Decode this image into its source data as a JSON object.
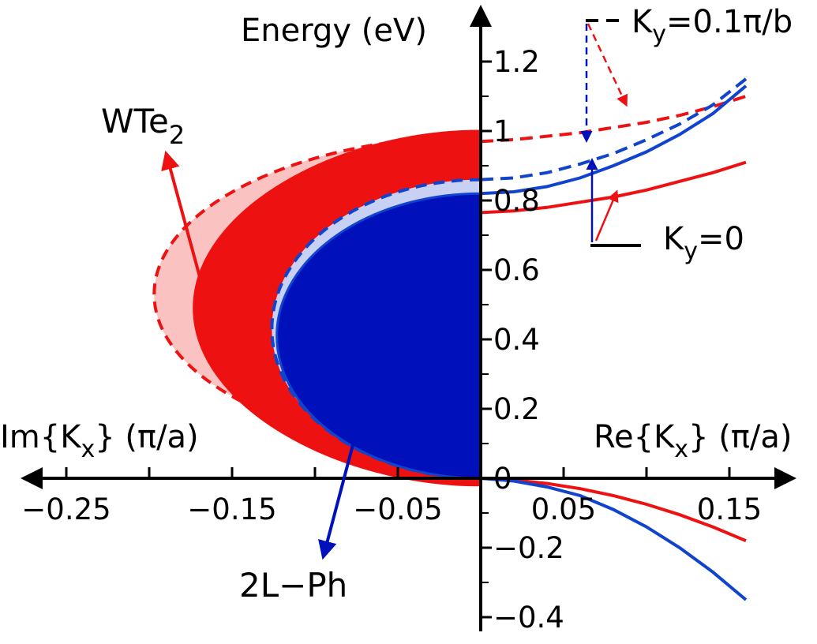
{
  "chart_data": {
    "type": "line",
    "x_axis": {
      "left_label": "Im{Kx} (π/a)",
      "right_label": "Re{Kx} (π/a)",
      "ticks_left": [
        -0.25,
        -0.15,
        -0.05
      ],
      "ticks_right": [
        0.05,
        0.15
      ],
      "tick_labels_left": [
        "−0.25",
        "−0.15",
        "−0.05"
      ],
      "tick_labels_right": [
        "0.05",
        "0.15"
      ],
      "xlim": [
        -0.27,
        0.18
      ]
    },
    "y_axis": {
      "label": "Energy (eV)",
      "ticks": [
        -0.4,
        -0.2,
        0,
        0.2,
        0.4,
        0.6,
        0.8,
        1.0,
        1.2
      ],
      "tick_labels": [
        "−0.4",
        "−0.2",
        "0",
        "0.2",
        "0.4",
        "0.6",
        "0.8",
        "1",
        "1.2"
      ],
      "ylim": [
        -0.45,
        1.3
      ]
    },
    "colors": {
      "wte2": "#ee1111",
      "wte2_light": "#fbc2c2",
      "ph": "#0011bb",
      "ph_line": "#1144cc",
      "ph_light": "#c8d0f4"
    },
    "series": [
      {
        "name": "WTe2 Ky=0.1π/b (Re)",
        "color": "wte2",
        "dash": true,
        "x": [
          0,
          0.02,
          0.04,
          0.06,
          0.08,
          0.1,
          0.12,
          0.14,
          0.16
        ],
        "y": [
          0.97,
          0.975,
          0.985,
          0.995,
          1.01,
          1.025,
          1.045,
          1.07,
          1.1
        ]
      },
      {
        "name": "WTe2 Ky=0 (Re)",
        "color": "wte2",
        "dash": false,
        "x": [
          0,
          0.02,
          0.04,
          0.06,
          0.08,
          0.1,
          0.12,
          0.14,
          0.16
        ],
        "y": [
          0.765,
          0.77,
          0.78,
          0.795,
          0.81,
          0.83,
          0.855,
          0.88,
          0.91
        ]
      },
      {
        "name": "2L-Ph Ky=0.1π/b (Re)",
        "color": "ph_line",
        "dash": true,
        "x": [
          0,
          0.02,
          0.04,
          0.06,
          0.08,
          0.1,
          0.12,
          0.14,
          0.16
        ],
        "y": [
          0.86,
          0.865,
          0.88,
          0.905,
          0.935,
          0.975,
          1.02,
          1.075,
          1.15
        ]
      },
      {
        "name": "2L-Ph Ky=0 (Re)",
        "color": "ph_line",
        "dash": false,
        "x": [
          0,
          0.02,
          0.04,
          0.06,
          0.08,
          0.1,
          0.12,
          0.14,
          0.16
        ],
        "y": [
          0.82,
          0.825,
          0.84,
          0.865,
          0.9,
          0.94,
          0.99,
          1.05,
          1.13
        ]
      },
      {
        "name": "WTe2 valence (Re)",
        "color": "wte2",
        "dash": false,
        "x": [
          0,
          0.02,
          0.04,
          0.06,
          0.08,
          0.1,
          0.12,
          0.14,
          0.16
        ],
        "y": [
          0,
          -0.005,
          -0.015,
          -0.03,
          -0.05,
          -0.075,
          -0.105,
          -0.14,
          -0.18
        ]
      },
      {
        "name": "2L-Ph valence (Re)",
        "color": "ph_line",
        "dash": false,
        "x": [
          0,
          0.02,
          0.04,
          0.06,
          0.08,
          0.1,
          0.12,
          0.14,
          0.16
        ],
        "y": [
          0,
          -0.008,
          -0.025,
          -0.05,
          -0.09,
          -0.14,
          -0.2,
          -0.27,
          -0.35
        ]
      }
    ],
    "regions": [
      {
        "name": "WTe2 Ky=0.1π/b (Im)",
        "color": "wte2_light",
        "outline_color": "wte2",
        "outline_dash": true,
        "vertex": [
          -0.197,
          0.53
        ],
        "half_height": 0.455,
        "shape": 0.55
      },
      {
        "name": "WTe2 Ky=0 (Im)",
        "color": "wte2",
        "outline_color": "wte2",
        "outline_dash": false,
        "vertex": [
          -0.173,
          0.49
        ],
        "half_height": 0.51,
        "shape": 0.5
      },
      {
        "name": "2L-Ph Ky=0.1π/b (Im)",
        "color": "ph_light",
        "outline_color": "ph_line",
        "outline_dash": true,
        "vertex": [
          -0.126,
          0.43
        ],
        "half_height": 0.43,
        "shape": 0.55
      },
      {
        "name": "2L-Ph Ky=0 (Im)",
        "color": "ph",
        "outline_color": "ph_line",
        "outline_dash": false,
        "vertex": [
          -0.123,
          0.41
        ],
        "half_height": 0.41,
        "shape": 0.55
      }
    ],
    "legend": {
      "dashed_label_prefix": "K",
      "dashed_label_sub": "y",
      "dashed_label_suffix": "=0.1π/b",
      "solid_label_prefix": "K",
      "solid_label_sub": "y",
      "solid_label_suffix": "=0"
    },
    "annotations": [
      {
        "name": "wte2",
        "text": "WTe",
        "sub": "2",
        "color": "wte2"
      },
      {
        "name": "ph",
        "text": "2L−Ph",
        "color": "ph"
      }
    ]
  }
}
